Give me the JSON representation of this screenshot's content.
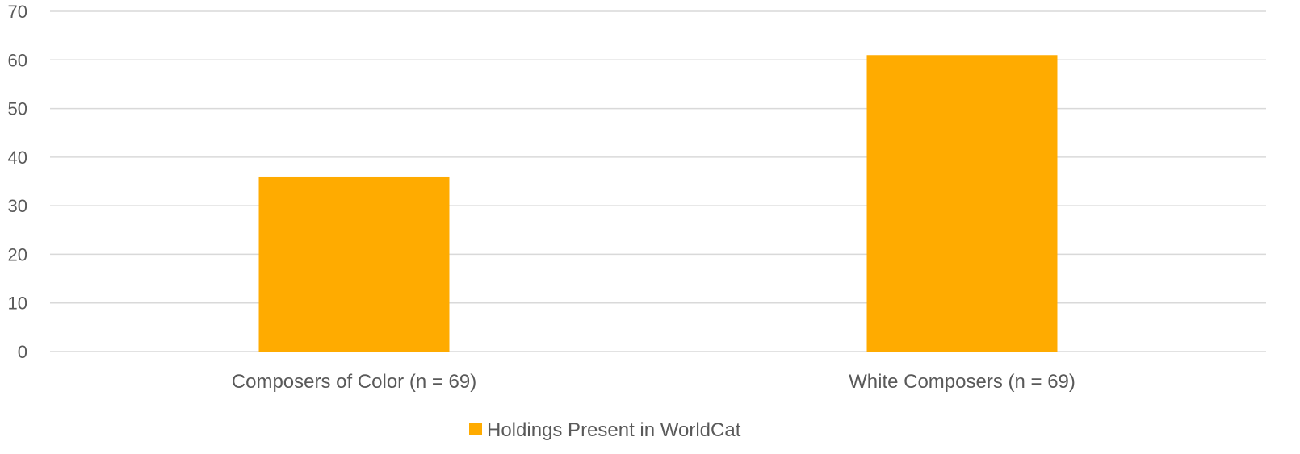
{
  "chart_data": {
    "type": "bar",
    "categories": [
      "Composers of Color (n = 69)",
      "White Composers (n = 69)"
    ],
    "series": [
      {
        "name": "Holdings Present in WorldCat",
        "values": [
          36,
          61
        ],
        "color": "#ffab00"
      }
    ],
    "ylim": [
      0,
      70
    ],
    "yticks": [
      0,
      10,
      20,
      30,
      40,
      50,
      60,
      70
    ],
    "grid": true,
    "legend_position": "bottom"
  }
}
